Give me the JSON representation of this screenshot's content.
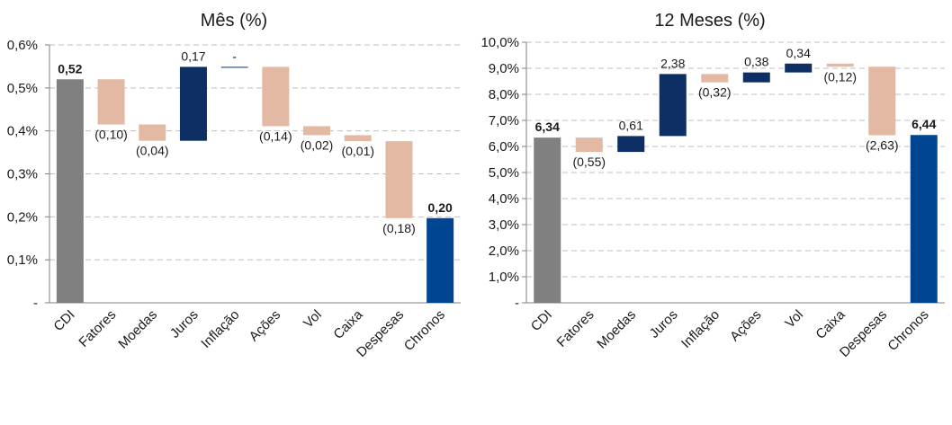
{
  "colors": {
    "base": "#808080",
    "negative": "#e3b9a3",
    "positive": "#0d2f63",
    "final": "#004592",
    "grid": "#bfbfbf",
    "axis": "#808080"
  },
  "chart_data": [
    {
      "type": "bar",
      "subtype": "waterfall",
      "title": "Mês (%)",
      "ylim": [
        0,
        0.6
      ],
      "yticks": [
        0,
        0.1,
        0.2,
        0.3,
        0.4,
        0.5,
        0.6
      ],
      "ytick_labels": [
        "-",
        "0,1%",
        "0,2%",
        "0,3%",
        "0,4%",
        "0,5%",
        "0,6%"
      ],
      "grid": true,
      "categories": [
        "CDI",
        "Fatores",
        "Moedas",
        "Juros",
        "Inflação",
        "Ações",
        "Vol",
        "Caixa",
        "Despesas",
        "Chronos"
      ],
      "bars": [
        {
          "category": "CDI",
          "kind": "total",
          "start": 0,
          "end": 0.52,
          "label": "0,52",
          "bold": true
        },
        {
          "category": "Fatores",
          "kind": "negative",
          "start": 0.52,
          "end": 0.415,
          "label": "(0,10)"
        },
        {
          "category": "Moedas",
          "kind": "negative",
          "start": 0.415,
          "end": 0.377,
          "label": "(0,04)"
        },
        {
          "category": "Juros",
          "kind": "positive",
          "start": 0.377,
          "end": 0.549,
          "label": "0,17"
        },
        {
          "category": "Inflação",
          "kind": "positive",
          "start": 0.549,
          "end": 0.549,
          "label": "-"
        },
        {
          "category": "Ações",
          "kind": "negative",
          "start": 0.549,
          "end": 0.411,
          "label": "(0,14)"
        },
        {
          "category": "Vol",
          "kind": "negative",
          "start": 0.411,
          "end": 0.39,
          "label": "(0,02)"
        },
        {
          "category": "Caixa",
          "kind": "negative",
          "start": 0.39,
          "end": 0.376,
          "label": "(0,01)"
        },
        {
          "category": "Despesas",
          "kind": "negative",
          "start": 0.376,
          "end": 0.197,
          "label": "(0,18)"
        },
        {
          "category": "Chronos",
          "kind": "final",
          "start": 0,
          "end": 0.197,
          "label": "0,20",
          "bold": true
        }
      ]
    },
    {
      "type": "bar",
      "subtype": "waterfall",
      "title": "12 Meses (%)",
      "ylim": [
        0,
        10
      ],
      "yticks": [
        0,
        1,
        2,
        3,
        4,
        5,
        6,
        7,
        8,
        9,
        10
      ],
      "ytick_labels": [
        "-",
        "1,0%",
        "2,0%",
        "3,0%",
        "4,0%",
        "5,0%",
        "6,0%",
        "7,0%",
        "8,0%",
        "9,0%",
        "10,0%"
      ],
      "grid": true,
      "categories": [
        "CDI",
        "Fatores",
        "Moedas",
        "Juros",
        "Inflação",
        "Ações",
        "Vol",
        "Caixa",
        "Despesas",
        "Chronos"
      ],
      "bars": [
        {
          "category": "CDI",
          "kind": "total",
          "start": 0,
          "end": 6.34,
          "label": "6,34",
          "bold": true
        },
        {
          "category": "Fatores",
          "kind": "negative",
          "start": 6.34,
          "end": 5.79,
          "label": "(0,55)"
        },
        {
          "category": "Moedas",
          "kind": "positive",
          "start": 5.79,
          "end": 6.4,
          "label": "0,61"
        },
        {
          "category": "Juros",
          "kind": "positive",
          "start": 6.4,
          "end": 8.78,
          "label": "2,38"
        },
        {
          "category": "Inflação",
          "kind": "negative",
          "start": 8.78,
          "end": 8.46,
          "label": "(0,32)"
        },
        {
          "category": "Ações",
          "kind": "positive",
          "start": 8.46,
          "end": 8.84,
          "label": "0,38"
        },
        {
          "category": "Vol",
          "kind": "positive",
          "start": 8.84,
          "end": 9.18,
          "label": "0,34"
        },
        {
          "category": "Caixa",
          "kind": "negative",
          "start": 9.18,
          "end": 9.06,
          "label": "(0,12)"
        },
        {
          "category": "Despesas",
          "kind": "negative",
          "start": 9.06,
          "end": 6.43,
          "label": "(2,63)"
        },
        {
          "category": "Chronos",
          "kind": "final",
          "start": 0,
          "end": 6.44,
          "label": "6,44",
          "bold": true
        }
      ]
    }
  ]
}
